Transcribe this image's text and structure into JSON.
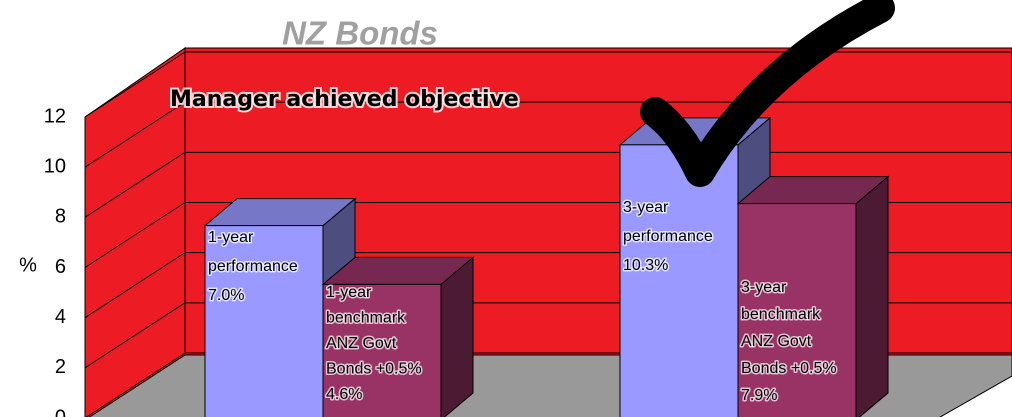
{
  "chart_data": {
    "type": "bar3d",
    "title": "NZ Bonds",
    "annotation": "Manager achieved objective",
    "ylabel": "%",
    "ylim": [
      0,
      12
    ],
    "yticks": [
      0,
      2,
      4,
      6,
      8,
      10,
      12
    ],
    "grid": true,
    "values": [
      7.0,
      4.6,
      10.3,
      7.9
    ],
    "bar_labels": [
      [
        "1-year",
        "performance"
      ],
      [
        "1-year",
        "benchmark",
        "ANZ Govt",
        "Bonds +0.5%"
      ],
      [
        "3-year",
        "performance"
      ],
      [
        "3-year",
        "benchmark",
        "ANZ Govt",
        "Bonds +0.5%"
      ]
    ],
    "value_labels": [
      "7.0%",
      "4.6%",
      "10.3%",
      "7.9%"
    ],
    "colors": [
      "#9999ff",
      "#993366",
      "#9999ff",
      "#993366"
    ]
  }
}
